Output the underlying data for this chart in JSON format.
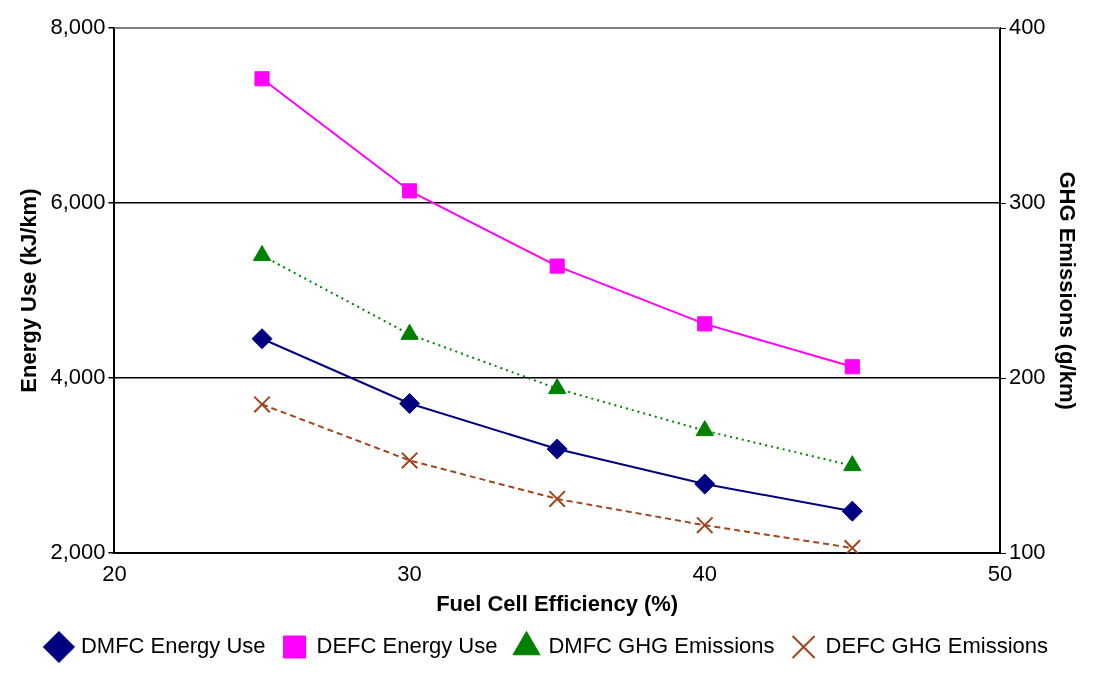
{
  "chart_data": {
    "type": "line",
    "xlabel": "Fuel Cell Efficiency (%)",
    "ylabel": "Energy Use (kJ/km)",
    "y2label": "GHG Emissions (g/km)",
    "xlim": [
      20,
      50
    ],
    "xticks": [
      20,
      30,
      40,
      50
    ],
    "ylim": [
      2000,
      8000
    ],
    "yticks": [
      {
        "value": 2000,
        "label": "2,000"
      },
      {
        "value": 4000,
        "label": "4,000"
      },
      {
        "value": 6000,
        "label": "6,000"
      },
      {
        "value": 8000,
        "label": "8,000"
      }
    ],
    "y2lim": [
      100,
      400
    ],
    "y2ticks": [
      100,
      200,
      300,
      400
    ],
    "grid": "y",
    "legend": "bottom",
    "x": [
      25,
      30,
      35,
      40,
      45
    ],
    "series": [
      {
        "name": "DMFC Energy Use",
        "color": "#000080",
        "values": [
          4450,
          3710,
          3190,
          2790,
          2480
        ],
        "marker": "diamond",
        "line_style": "solid"
      },
      {
        "name": "DEFC Energy Use",
        "color": "#ff00ff",
        "values": [
          7420,
          6140,
          5280,
          4620,
          4130
        ],
        "marker": "square",
        "line_style": "solid"
      },
      {
        "name": "DMFC GHG Emissions",
        "color": "#008000",
        "values": [
          270,
          225,
          194,
          170,
          150
        ],
        "marker": "triangle",
        "line_style": "dotted",
        "axis": "y2"
      },
      {
        "name": "DEFC GHG Emissions",
        "color": "#a0461e",
        "values": [
          185,
          153,
          131,
          116,
          103
        ],
        "marker": "cross",
        "line_style": "dashed",
        "axis": "y2"
      }
    ]
  }
}
